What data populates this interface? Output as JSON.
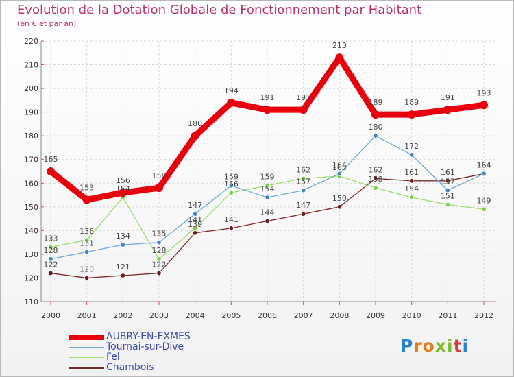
{
  "title": "Evolution de la Dotation Globale de Fonctionnement par Habitant",
  "subtitle": "(en € et par an)",
  "logo": [
    "P",
    "r",
    "o",
    "x",
    "i",
    "t",
    "i"
  ],
  "logo_colors": [
    "#2a7fd4",
    "#e07b1a",
    "#e07b1a",
    "#7ab82e",
    "#7ab82e",
    "#d43a3a",
    "#2a7fd4"
  ],
  "chart_data": {
    "type": "line",
    "title": "Evolution de la Dotation Globale de Fonctionnement par Habitant",
    "ylabel": "(en € et par an)",
    "xlabel": "",
    "categories": [
      "2000",
      "2001",
      "2002",
      "2003",
      "2004",
      "2005",
      "2006",
      "2007",
      "2008",
      "2009",
      "2010",
      "2011",
      "2012"
    ],
    "ylim": [
      110,
      220
    ],
    "yticks": [
      110,
      120,
      130,
      140,
      150,
      160,
      170,
      180,
      190,
      200,
      210,
      220
    ],
    "grid": true,
    "series": [
      {
        "name": "AUBRY-EN-EXMES",
        "color": "#e8000b",
        "marker": "#e8000b",
        "width": 9,
        "values": [
          165,
          153,
          156,
          158,
          180,
          194,
          191,
          191,
          213,
          189,
          189,
          191,
          193
        ]
      },
      {
        "name": "Tournai-sur-Dive",
        "color": "#6fa7d8",
        "marker": "#3f86c9",
        "width": 1.3,
        "values": [
          128,
          131,
          134,
          135,
          147,
          159,
          154,
          157,
          164,
          180,
          172,
          157,
          164
        ]
      },
      {
        "name": "Fel",
        "color": "#9bdc6f",
        "marker": "#7ccd4b",
        "width": 1.3,
        "values": [
          133,
          136,
          154,
          128,
          141,
          156,
          159,
          162,
          163,
          158,
          154,
          151,
          149
        ]
      },
      {
        "name": "Chambois",
        "color": "#7a2a2a",
        "marker": "#6a1a1a",
        "width": 1.3,
        "values": [
          122,
          120,
          121,
          122,
          139,
          141,
          144,
          147,
          150,
          162,
          161,
          161,
          164
        ]
      }
    ]
  }
}
